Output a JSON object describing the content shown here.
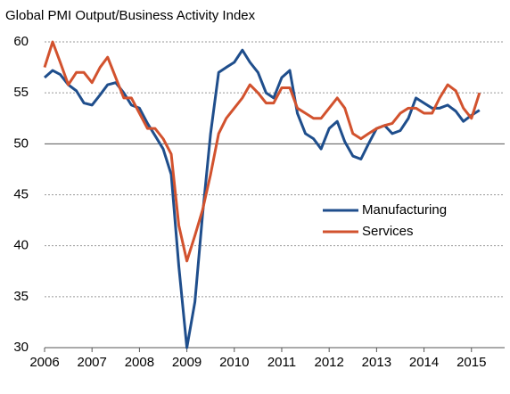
{
  "chart_data": {
    "type": "line",
    "title": "Global PMI Output/Business Activity Index",
    "x": [
      2006.0,
      2006.17,
      2006.33,
      2006.5,
      2006.67,
      2006.83,
      2007.0,
      2007.17,
      2007.33,
      2007.5,
      2007.67,
      2007.83,
      2008.0,
      2008.17,
      2008.33,
      2008.5,
      2008.67,
      2008.83,
      2009.0,
      2009.17,
      2009.33,
      2009.5,
      2009.67,
      2009.83,
      2010.0,
      2010.17,
      2010.33,
      2010.5,
      2010.67,
      2010.83,
      2011.0,
      2011.17,
      2011.33,
      2011.5,
      2011.67,
      2011.83,
      2012.0,
      2012.17,
      2012.33,
      2012.5,
      2012.67,
      2012.83,
      2013.0,
      2013.17,
      2013.33,
      2013.5,
      2013.67,
      2013.83,
      2014.0,
      2014.17,
      2014.33,
      2014.5,
      2014.67,
      2014.83,
      2015.0,
      2015.17
    ],
    "series": [
      {
        "name": "Manufacturing",
        "color": "#1f4e8c",
        "values": [
          56.5,
          57.2,
          56.8,
          55.8,
          55.2,
          54.0,
          53.8,
          54.8,
          55.8,
          56.0,
          55.0,
          53.8,
          53.5,
          52.0,
          50.8,
          49.5,
          47.0,
          38.0,
          30.0,
          34.5,
          43.0,
          51.0,
          57.0,
          57.5,
          58.0,
          59.2,
          58.0,
          57.0,
          55.0,
          54.5,
          56.5,
          57.2,
          53.0,
          51.0,
          50.5,
          49.5,
          51.5,
          52.2,
          50.2,
          48.8,
          48.5,
          50.0,
          51.5,
          51.8,
          51.0,
          51.3,
          52.5,
          54.5,
          54.0,
          53.5,
          53.5,
          53.8,
          53.2,
          52.2,
          52.8,
          53.3
        ]
      },
      {
        "name": "Services",
        "color": "#d2522e",
        "values": [
          57.5,
          60.0,
          58.0,
          55.8,
          57.0,
          57.0,
          56.0,
          57.5,
          58.5,
          56.5,
          54.5,
          54.5,
          53.0,
          51.5,
          51.5,
          50.5,
          49.0,
          42.0,
          38.5,
          41.0,
          43.5,
          47.0,
          51.0,
          52.5,
          53.5,
          54.5,
          55.8,
          55.0,
          54.0,
          54.0,
          55.5,
          55.5,
          53.5,
          53.0,
          52.5,
          52.5,
          53.5,
          54.5,
          53.5,
          51.0,
          50.5,
          51.0,
          51.5,
          51.8,
          52.0,
          53.0,
          53.5,
          53.5,
          53.0,
          53.0,
          54.5,
          55.8,
          55.2,
          53.5,
          52.5,
          55.0
        ]
      }
    ],
    "xlim": [
      2006,
      2015.7
    ],
    "xticks": [
      2006,
      2007,
      2008,
      2009,
      2010,
      2011,
      2012,
      2013,
      2014,
      2015
    ],
    "ylim": [
      30,
      60
    ],
    "yticks": [
      30,
      35,
      40,
      45,
      50,
      55,
      60
    ],
    "grid": true,
    "reference_line": 50,
    "legend": "right"
  }
}
